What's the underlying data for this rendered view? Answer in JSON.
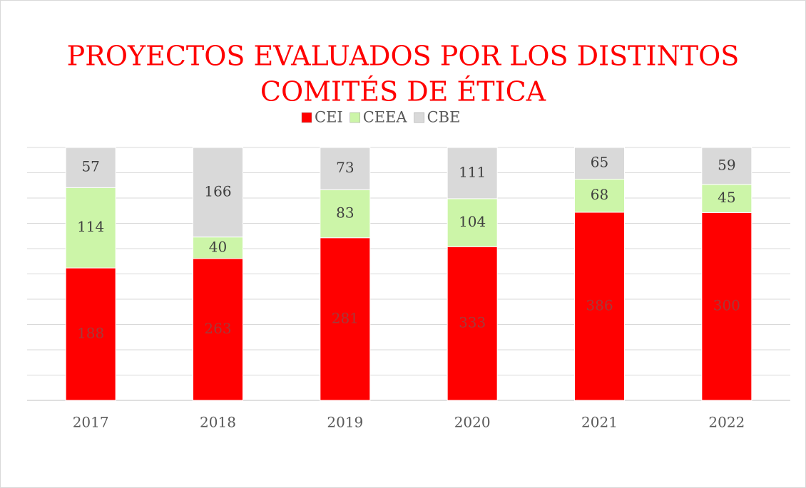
{
  "chart_data": {
    "type": "bar",
    "stacking": "percent",
    "title": [
      "PROYECTOS EVALUADOS POR LOS DISTINTOS",
      "COMITÉS DE ÉTICA"
    ],
    "categories": [
      "2017",
      "2018",
      "2019",
      "2020",
      "2021",
      "2022"
    ],
    "series": [
      {
        "name": "CEI",
        "color": "#ff0000",
        "label_color": "#a33a3a",
        "values": [
          188,
          263,
          281,
          333,
          386,
          300
        ]
      },
      {
        "name": "CEEA",
        "color": "#ccf5a8",
        "label_color": "#404040",
        "values": [
          114,
          40,
          83,
          104,
          68,
          45
        ]
      },
      {
        "name": "CBE",
        "color": "#d9d9d9",
        "label_color": "#404040",
        "values": [
          57,
          166,
          73,
          111,
          65,
          59
        ]
      }
    ],
    "ylim": [
      0,
      100
    ],
    "yticks": [
      0,
      10,
      20,
      30,
      40,
      50,
      60,
      70,
      80,
      90,
      100
    ],
    "grid": true,
    "legend": "top"
  }
}
